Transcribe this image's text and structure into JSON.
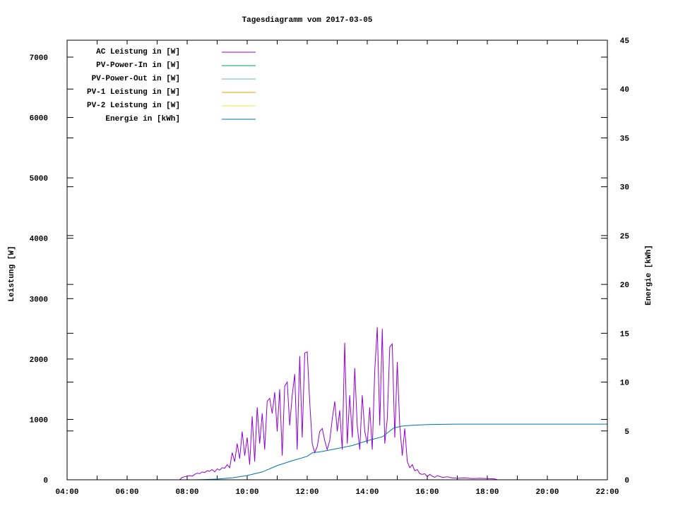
{
  "chart_data": {
    "type": "line",
    "title": "Tagesdiagramm vom 2017-03-05",
    "ylabel": "Leistung [W]",
    "y2label": "Energie [kWh]",
    "xlabel": "",
    "xlim": [
      "04:00",
      "22:00"
    ],
    "ylim": [
      0,
      7280
    ],
    "y2lim": [
      0,
      45
    ],
    "xticks": [
      "04:00",
      "06:00",
      "08:00",
      "10:00",
      "12:00",
      "14:00",
      "16:00",
      "18:00",
      "20:00",
      "22:00"
    ],
    "yticks": [
      0,
      1000,
      2000,
      3000,
      4000,
      5000,
      6000,
      7000
    ],
    "y2ticks": [
      0,
      5,
      10,
      15,
      20,
      25,
      30,
      35,
      40,
      45
    ],
    "grid": false,
    "legend_position": "top-left",
    "series": [
      {
        "name": "AC Leistung in [W]",
        "color": "#9400d3",
        "axis": "y",
        "points": [
          [
            "07:45",
            0
          ],
          [
            "07:50",
            40
          ],
          [
            "07:55",
            50
          ],
          [
            "08:00",
            60
          ],
          [
            "08:05",
            70
          ],
          [
            "08:10",
            60
          ],
          [
            "08:15",
            90
          ],
          [
            "08:20",
            110
          ],
          [
            "08:25",
            100
          ],
          [
            "08:30",
            130
          ],
          [
            "08:35",
            120
          ],
          [
            "08:40",
            150
          ],
          [
            "08:45",
            140
          ],
          [
            "08:50",
            170
          ],
          [
            "08:55",
            130
          ],
          [
            "09:00",
            180
          ],
          [
            "09:05",
            160
          ],
          [
            "09:10",
            200
          ],
          [
            "09:15",
            190
          ],
          [
            "09:20",
            250
          ],
          [
            "09:25",
            200
          ],
          [
            "09:30",
            450
          ],
          [
            "09:35",
            300
          ],
          [
            "09:40",
            600
          ],
          [
            "09:45",
            350
          ],
          [
            "09:50",
            800
          ],
          [
            "09:55",
            400
          ],
          [
            "10:00",
            700
          ],
          [
            "10:05",
            250
          ],
          [
            "10:10",
            1050
          ],
          [
            "10:15",
            300
          ],
          [
            "10:20",
            1200
          ],
          [
            "10:25",
            600
          ],
          [
            "10:30",
            1100
          ],
          [
            "10:35",
            500
          ],
          [
            "10:40",
            1300
          ],
          [
            "10:45",
            1350
          ],
          [
            "10:50",
            1100
          ],
          [
            "10:55",
            1450
          ],
          [
            "11:00",
            800
          ],
          [
            "11:05",
            1500
          ],
          [
            "11:10",
            400
          ],
          [
            "11:15",
            1550
          ],
          [
            "11:20",
            1620
          ],
          [
            "11:25",
            900
          ],
          [
            "11:30",
            1400
          ],
          [
            "11:35",
            1750
          ],
          [
            "11:40",
            500
          ],
          [
            "11:45",
            2050
          ],
          [
            "11:50",
            700
          ],
          [
            "11:55",
            2100
          ],
          [
            "12:00",
            2120
          ],
          [
            "12:05",
            1300
          ],
          [
            "12:10",
            600
          ],
          [
            "12:15",
            450
          ],
          [
            "12:20",
            550
          ],
          [
            "12:25",
            800
          ],
          [
            "12:30",
            850
          ],
          [
            "12:35",
            650
          ],
          [
            "12:40",
            500
          ],
          [
            "12:45",
            650
          ],
          [
            "12:50",
            1000
          ],
          [
            "12:55",
            1300
          ],
          [
            "13:00",
            800
          ],
          [
            "13:05",
            1150
          ],
          [
            "13:10",
            500
          ],
          [
            "13:15",
            2270
          ],
          [
            "13:20",
            600
          ],
          [
            "13:25",
            1400
          ],
          [
            "13:30",
            700
          ],
          [
            "13:35",
            1850
          ],
          [
            "13:40",
            900
          ],
          [
            "13:45",
            500
          ],
          [
            "13:50",
            1400
          ],
          [
            "13:55",
            800
          ],
          [
            "14:00",
            600
          ],
          [
            "14:05",
            1200
          ],
          [
            "14:10",
            500
          ],
          [
            "14:15",
            1800
          ],
          [
            "14:20",
            2530
          ],
          [
            "14:25",
            900
          ],
          [
            "14:30",
            2500
          ],
          [
            "14:35",
            600
          ],
          [
            "14:40",
            1000
          ],
          [
            "14:45",
            2200
          ],
          [
            "14:50",
            2250
          ],
          [
            "14:55",
            700
          ],
          [
            "15:00",
            1950
          ],
          [
            "15:05",
            900
          ],
          [
            "15:10",
            400
          ],
          [
            "15:15",
            850
          ],
          [
            "15:20",
            300
          ],
          [
            "15:25",
            200
          ],
          [
            "15:30",
            250
          ],
          [
            "15:35",
            150
          ],
          [
            "15:40",
            170
          ],
          [
            "15:45",
            100
          ],
          [
            "15:50",
            90
          ],
          [
            "15:55",
            100
          ],
          [
            "16:00",
            50
          ],
          [
            "16:05",
            90
          ],
          [
            "16:10",
            60
          ],
          [
            "16:15",
            40
          ],
          [
            "16:20",
            70
          ],
          [
            "16:30",
            40
          ],
          [
            "16:40",
            50
          ],
          [
            "16:50",
            30
          ],
          [
            "17:00",
            25
          ],
          [
            "17:15",
            30
          ],
          [
            "17:30",
            20
          ],
          [
            "17:45",
            25
          ],
          [
            "18:00",
            20
          ],
          [
            "18:15",
            15
          ],
          [
            "18:20",
            0
          ]
        ]
      },
      {
        "name": "PV-Power-In in [W]",
        "color": "#009e73",
        "axis": "y",
        "points": []
      },
      {
        "name": "PV-Power-Out in [W]",
        "color": "#56b4e9",
        "axis": "y",
        "points": []
      },
      {
        "name": "PV-1 Leistung in [W]",
        "color": "#e69f00",
        "axis": "y",
        "points": []
      },
      {
        "name": "PV-2 Leistung in [W]",
        "color": "#f0e442",
        "axis": "y",
        "points": []
      },
      {
        "name": "Energie in [kWh]",
        "color": "#0072b2",
        "axis": "y2",
        "points": [
          [
            "08:15",
            0
          ],
          [
            "08:30",
            0.02
          ],
          [
            "09:00",
            0.07
          ],
          [
            "09:30",
            0.2
          ],
          [
            "10:00",
            0.43
          ],
          [
            "10:30",
            0.8
          ],
          [
            "11:00",
            1.45
          ],
          [
            "11:30",
            1.95
          ],
          [
            "12:00",
            2.4
          ],
          [
            "12:10",
            2.75
          ],
          [
            "12:30",
            2.9
          ],
          [
            "13:00",
            3.2
          ],
          [
            "13:30",
            3.5
          ],
          [
            "14:00",
            4.0
          ],
          [
            "14:30",
            4.4
          ],
          [
            "14:53",
            5.3
          ],
          [
            "15:10",
            5.5
          ],
          [
            "15:25",
            5.56
          ],
          [
            "16:00",
            5.65
          ],
          [
            "17:00",
            5.7
          ],
          [
            "22:00",
            5.7
          ]
        ]
      }
    ]
  }
}
